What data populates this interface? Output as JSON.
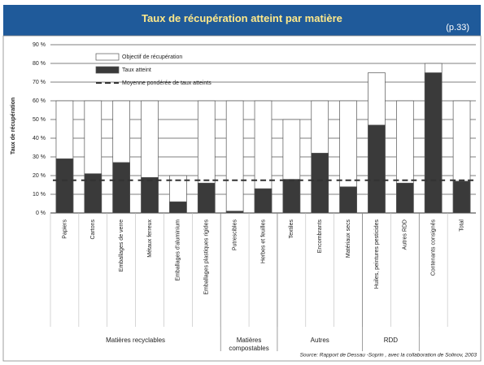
{
  "header": {
    "title": "Taux de récupération atteint par matière",
    "page_ref": "(p.33)"
  },
  "chart_data": {
    "type": "bar",
    "y_label": "Taux de récupération",
    "categories": [
      "Papiers",
      "Cartons",
      "Emballages de verre",
      "Métaux ferreux",
      "Emballages d'aluminium",
      "Emballages plastiques rigides",
      "Putrescibles",
      "Herbes et feuilles",
      "Textiles",
      "Encombrants",
      "Matériaux secs",
      "Huiles, peintures pesticides",
      "Autres RDD",
      "Contenants consignés",
      "Total"
    ],
    "series": [
      {
        "name": "Objectif de récupération",
        "color": "#ffffff",
        "values": [
          60,
          60,
          60,
          60,
          20,
          60,
          60,
          60,
          50,
          60,
          60,
          75,
          60,
          80,
          60
        ]
      },
      {
        "name": "Taux atteint",
        "color": "#3a3a3a",
        "values": [
          29,
          21,
          27,
          19,
          6,
          16,
          1,
          13,
          18,
          32,
          14,
          47,
          16,
          75,
          17
        ]
      }
    ],
    "average_line": {
      "name": "Moyenne pondérée de taux atteints",
      "value": 17.5,
      "color": "#333333"
    },
    "groups": [
      {
        "label": "Matières recyclables",
        "span": 6
      },
      {
        "label": "Matières compostables",
        "span": 2
      },
      {
        "label": "Autres",
        "span": 3
      },
      {
        "label": "RDD",
        "span": 2
      }
    ],
    "ylim": [
      0,
      90
    ],
    "yticks": [
      {
        "value": 0,
        "label": "0 %"
      },
      {
        "value": 10,
        "label": "10 %"
      },
      {
        "value": 20,
        "label": "20 %"
      },
      {
        "value": 30,
        "label": "30 %"
      },
      {
        "value": 40,
        "label": "40 %"
      },
      {
        "value": 50,
        "label": "50 %"
      },
      {
        "value": 60,
        "label": "60 %"
      },
      {
        "value": 70,
        "label": "70 %"
      },
      {
        "value": 80,
        "label": "80 %"
      },
      {
        "value": 90,
        "label": "90 %"
      }
    ],
    "grid": true,
    "source": "Source: Rapport de Dessau -Soprin , avec la collaboration de Solinov, 2003"
  }
}
